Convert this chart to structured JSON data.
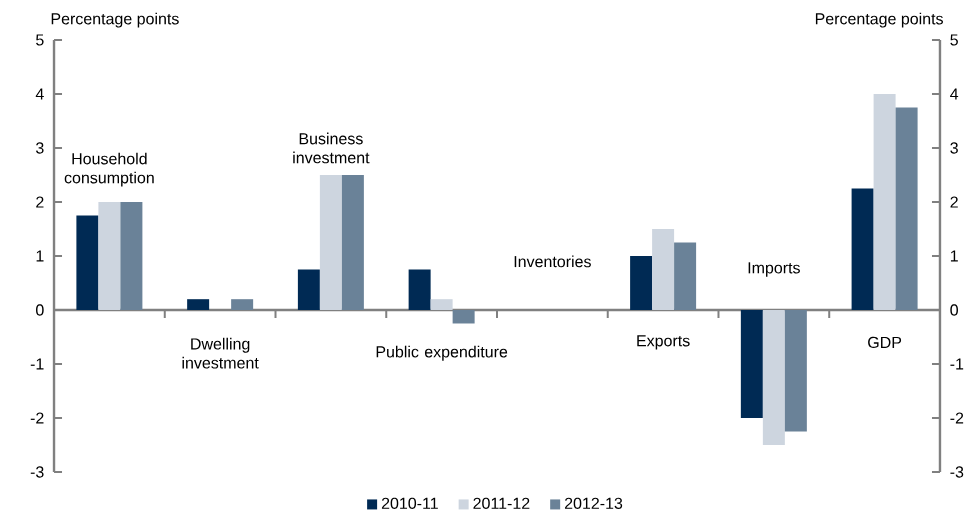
{
  "chart_data": {
    "type": "bar",
    "ylabel": "Percentage points",
    "y2label": "Percentage points",
    "categories": [
      "Household consumption",
      "Dwelling investment",
      "Business investment",
      "Public expenditure",
      "Inventories",
      "Exports",
      "Imports",
      "GDP"
    ],
    "series": [
      {
        "name": "2010-11",
        "color": "#002a54",
        "values": [
          1.75,
          0.2,
          0.75,
          0.75,
          0,
          1.0,
          -2.0,
          2.25
        ]
      },
      {
        "name": "2011-12",
        "color": "#cdd5df",
        "values": [
          2.0,
          0,
          2.5,
          0.2,
          0,
          1.5,
          -2.5,
          4.0
        ]
      },
      {
        "name": "2012-13",
        "color": "#6a8298",
        "values": [
          2.0,
          0.2,
          2.5,
          -0.25,
          0,
          1.25,
          -2.25,
          3.75
        ]
      }
    ],
    "ylim": [
      -3,
      5
    ],
    "yticks": [
      -3,
      -2,
      -1,
      0,
      1,
      2,
      3,
      4,
      5
    ],
    "y2lim": [
      -3,
      5
    ],
    "y2ticks": [
      -3,
      -2,
      -1,
      0,
      1,
      2,
      3,
      4,
      5
    ],
    "legend": "bottom",
    "grid": false
  }
}
